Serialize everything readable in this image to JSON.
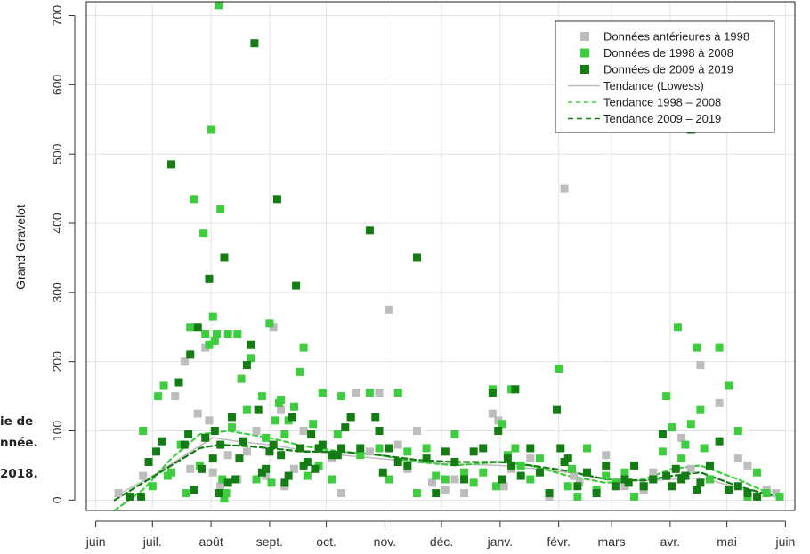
{
  "left_caption_lines": [
    "ie de",
    "nnée.",
    "2018."
  ],
  "chart_data": {
    "type": "scatter",
    "title": "",
    "xlabel": "",
    "ylabel": "Grand Gravelot",
    "ylim": [
      -15,
      720
    ],
    "yticks": [
      0,
      100,
      200,
      300,
      400,
      500,
      600,
      700
    ],
    "xticks": [
      {
        "label": "juin",
        "day": 0
      },
      {
        "label": "juil.",
        "day": 30
      },
      {
        "label": "août",
        "day": 61
      },
      {
        "label": "sept.",
        "day": 92
      },
      {
        "label": "oct.",
        "day": 122
      },
      {
        "label": "nov.",
        "day": 153
      },
      {
        "label": "déc.",
        "day": 183
      },
      {
        "label": "janv.",
        "day": 214
      },
      {
        "label": "févr.",
        "day": 245
      },
      {
        "label": "mars",
        "day": 273
      },
      {
        "label": "avr.",
        "day": 304
      },
      {
        "label": "mai",
        "day": 334
      },
      {
        "label": "juin",
        "day": 365
      }
    ],
    "xlim": [
      -5,
      370
    ],
    "grid": true,
    "legend_position": "top-right",
    "legend": [
      {
        "label": "Données antérieures à 1998",
        "kind": "point",
        "color": "#bdbdbd"
      },
      {
        "label": "Données de 1998 à 2008",
        "kind": "point",
        "color": "#3ecd3e"
      },
      {
        "label": "Données de 2009 à 2019",
        "kind": "point",
        "color": "#137d13"
      },
      {
        "label": "Tendance (Lowess)",
        "kind": "line",
        "color": "#bdbdbd",
        "dash": ""
      },
      {
        "label": "Tendance 1998 – 2008",
        "kind": "line",
        "color": "#3ecd3e",
        "dash": "5,4"
      },
      {
        "label": "Tendance 2009 – 2019",
        "kind": "line",
        "color": "#137d13",
        "dash": "6,4"
      }
    ],
    "series": [
      {
        "name": "Données antérieures à 1998",
        "color": "#bdbdbd",
        "x": [
          12,
          25,
          42,
          47,
          50,
          54,
          58,
          60,
          62,
          66,
          70,
          75,
          80,
          85,
          90,
          94,
          98,
          100,
          105,
          110,
          120,
          125,
          130,
          138,
          145,
          150,
          155,
          160,
          165,
          170,
          178,
          185,
          190,
          195,
          210,
          213,
          216,
          220,
          230,
          240,
          248,
          253,
          256,
          260,
          270,
          280,
          290,
          295,
          310,
          315,
          320,
          330,
          340,
          345,
          355,
          360
        ],
        "y": [
          10,
          35,
          150,
          200,
          45,
          125,
          220,
          115,
          40,
          20,
          65,
          30,
          70,
          100,
          35,
          250,
          130,
          20,
          45,
          100,
          155,
          60,
          10,
          155,
          70,
          155,
          275,
          80,
          45,
          100,
          25,
          15,
          30,
          10,
          125,
          115,
          20,
          45,
          60,
          5,
          450,
          35,
          25,
          40,
          65,
          20,
          15,
          40,
          90,
          45,
          195,
          140,
          60,
          50,
          15,
          10
        ]
      },
      {
        "name": "Données de 1998 à 2008",
        "color": "#3ecd3e",
        "x": [
          25,
          30,
          33,
          36,
          38,
          40,
          45,
          48,
          50,
          52,
          55,
          57,
          58,
          60,
          61,
          62,
          63,
          64,
          65,
          66,
          67,
          68,
          69,
          70,
          72,
          75,
          77,
          80,
          82,
          85,
          88,
          90,
          92,
          93,
          95,
          97,
          98,
          100,
          102,
          105,
          108,
          110,
          112,
          115,
          118,
          120,
          125,
          128,
          130,
          135,
          140,
          145,
          150,
          155,
          160,
          165,
          170,
          175,
          180,
          185,
          190,
          195,
          200,
          205,
          210,
          212,
          215,
          218,
          220,
          222,
          225,
          230,
          235,
          240,
          245,
          250,
          252,
          255,
          260,
          265,
          270,
          275,
          280,
          285,
          290,
          295,
          300,
          302,
          305,
          308,
          310,
          312,
          315,
          318,
          320,
          322,
          325,
          330,
          335,
          340,
          345,
          350,
          355,
          362
        ],
        "y": [
          100,
          20,
          150,
          165,
          35,
          40,
          80,
          10,
          250,
          435,
          50,
          385,
          240,
          225,
          535,
          265,
          230,
          240,
          715,
          420,
          30,
          2,
          10,
          240,
          105,
          240,
          175,
          130,
          205,
          30,
          150,
          90,
          255,
          25,
          115,
          140,
          145,
          95,
          115,
          135,
          185,
          220,
          35,
          110,
          50,
          155,
          30,
          95,
          150,
          120,
          65,
          155,
          75,
          30,
          155,
          70,
          10,
          75,
          35,
          30,
          95,
          40,
          25,
          40,
          160,
          20,
          110,
          65,
          160,
          75,
          50,
          30,
          60,
          10,
          190,
          20,
          45,
          5,
          75,
          15,
          35,
          25,
          40,
          5,
          20,
          30,
          70,
          150,
          105,
          250,
          60,
          80,
          110,
          220,
          130,
          75,
          30,
          220,
          165,
          100,
          5,
          40,
          10,
          5
        ]
      },
      {
        "name": "Données de 2009 à 2019",
        "color": "#137d13",
        "x": [
          18,
          24,
          28,
          32,
          35,
          40,
          44,
          47,
          49,
          50,
          52,
          54,
          56,
          58,
          60,
          62,
          63,
          65,
          66,
          68,
          70,
          72,
          74,
          76,
          78,
          80,
          82,
          84,
          86,
          88,
          90,
          92,
          94,
          96,
          98,
          100,
          102,
          104,
          106,
          108,
          110,
          112,
          114,
          116,
          118,
          120,
          125,
          128,
          130,
          132,
          135,
          140,
          145,
          148,
          150,
          152,
          155,
          160,
          165,
          170,
          175,
          180,
          185,
          190,
          195,
          200,
          205,
          210,
          213,
          215,
          218,
          220,
          222,
          225,
          230,
          235,
          240,
          244,
          246,
          248,
          250,
          255,
          260,
          265,
          270,
          275,
          280,
          282,
          285,
          290,
          295,
          300,
          302,
          305,
          307,
          310,
          312,
          315,
          318,
          320,
          325,
          330,
          335,
          340,
          345,
          350
        ],
        "y": [
          5,
          5,
          55,
          70,
          85,
          485,
          170,
          80,
          95,
          210,
          15,
          250,
          45,
          90,
          320,
          60,
          100,
          10,
          80,
          350,
          25,
          120,
          30,
          60,
          85,
          195,
          225,
          660,
          130,
          40,
          45,
          70,
          80,
          435,
          65,
          25,
          35,
          120,
          310,
          75,
          50,
          55,
          95,
          45,
          75,
          80,
          65,
          65,
          75,
          105,
          120,
          75,
          390,
          120,
          100,
          40,
          75,
          55,
          50,
          350,
          60,
          10,
          70,
          55,
          30,
          70,
          75,
          155,
          100,
          30,
          60,
          50,
          160,
          35,
          75,
          40,
          10,
          130,
          75,
          55,
          60,
          20,
          40,
          10,
          50,
          20,
          30,
          25,
          50,
          20,
          30,
          95,
          35,
          20,
          45,
          30,
          35,
          535,
          15,
          25,
          50,
          85,
          15,
          20,
          10,
          5
        ]
      }
    ],
    "trend_lines": [
      {
        "name": "Tendance (Lowess)",
        "color": "#bdbdbd",
        "x": [
          10,
          30,
          50,
          62,
          75,
          92,
          110,
          130,
          150,
          170,
          190,
          214,
          230,
          250,
          270,
          290,
          305,
          320,
          340,
          360
        ],
        "y": [
          5,
          35,
          70,
          90,
          85,
          80,
          72,
          65,
          60,
          55,
          52,
          50,
          46,
          40,
          30,
          28,
          30,
          32,
          18,
          5
        ]
      },
      {
        "name": "Tendance 1998 – 2008",
        "color": "#3ecd3e",
        "x": [
          10,
          25,
          40,
          55,
          70,
          92,
          110,
          130,
          150,
          170,
          190,
          214,
          230,
          250,
          270,
          290,
          305,
          320,
          340,
          360
        ],
        "y": [
          -15,
          15,
          60,
          95,
          100,
          90,
          78,
          70,
          65,
          55,
          50,
          55,
          50,
          35,
          25,
          30,
          45,
          50,
          30,
          5
        ]
      },
      {
        "name": "Tendance 2009 – 2019",
        "color": "#137d13",
        "x": [
          10,
          25,
          40,
          55,
          65,
          80,
          92,
          110,
          130,
          150,
          170,
          190,
          214,
          230,
          250,
          270,
          290,
          305,
          320,
          340,
          360
        ],
        "y": [
          0,
          25,
          50,
          75,
          80,
          78,
          75,
          70,
          70,
          65,
          58,
          55,
          55,
          50,
          42,
          30,
          28,
          35,
          40,
          20,
          5
        ]
      }
    ]
  }
}
